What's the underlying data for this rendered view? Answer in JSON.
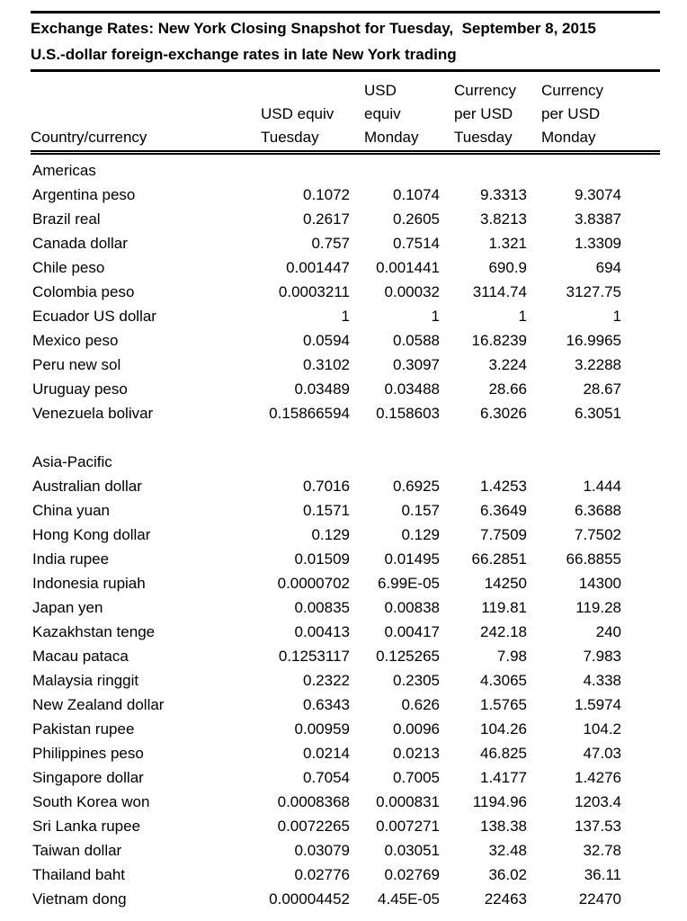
{
  "document": {
    "title": "Exchange Rates: New York Closing Snapshot for Tuesday,  September 8, 2015",
    "subtitle": "U.S.-dollar foreign-exchange rates in late New York trading"
  },
  "table": {
    "columns": [
      {
        "id": "country",
        "align": "left",
        "header_lines": [
          "Country/currency"
        ]
      },
      {
        "id": "usd-equiv-tuesday",
        "align": "right",
        "header_lines": [
          "USD equiv",
          "Tuesday"
        ]
      },
      {
        "id": "usd-equiv-monday",
        "align": "right",
        "header_lines": [
          "USD",
          "equiv",
          "Monday"
        ]
      },
      {
        "id": "per-usd-tuesday",
        "align": "right",
        "header_lines": [
          "Currency",
          "per USD",
          "Tuesday"
        ]
      },
      {
        "id": "per-usd-monday",
        "align": "right",
        "header_lines": [
          "Currency",
          "per USD",
          "Monday"
        ]
      }
    ],
    "sections": [
      {
        "name": "Americas",
        "rows": [
          {
            "country": "Argentina peso",
            "values": [
              "0.1072",
              "0.1074",
              "9.3313",
              "9.3074"
            ]
          },
          {
            "country": "Brazil real",
            "values": [
              "0.2617",
              "0.2605",
              "3.8213",
              "3.8387"
            ]
          },
          {
            "country": "Canada dollar",
            "values": [
              "0.757",
              "0.7514",
              "1.321",
              "1.3309"
            ]
          },
          {
            "country": "Chile peso",
            "values": [
              "0.001447",
              "0.001441",
              "690.9",
              "694"
            ]
          },
          {
            "country": "Colombia peso",
            "values": [
              "0.0003211",
              "0.00032",
              "3114.74",
              "3127.75"
            ]
          },
          {
            "country": "Ecuador US dollar",
            "values": [
              "1",
              "1",
              "1",
              "1"
            ]
          },
          {
            "country": "Mexico peso",
            "values": [
              "0.0594",
              "0.0588",
              "16.8239",
              "16.9965"
            ]
          },
          {
            "country": "Peru new sol",
            "values": [
              "0.3102",
              "0.3097",
              "3.224",
              "3.2288"
            ]
          },
          {
            "country": "Uruguay peso",
            "values": [
              "0.03489",
              "0.03488",
              "28.66",
              "28.67"
            ]
          },
          {
            "country": "Venezuela bolivar",
            "values": [
              "0.15866594",
              "0.158603",
              "6.3026",
              "6.3051"
            ]
          }
        ]
      },
      {
        "name": "Asia-Pacific",
        "rows": [
          {
            "country": "Australian dollar",
            "values": [
              "0.7016",
              "0.6925",
              "1.4253",
              "1.444"
            ]
          },
          {
            "country": "China yuan",
            "values": [
              "0.1571",
              "0.157",
              "6.3649",
              "6.3688"
            ]
          },
          {
            "country": "Hong Kong dollar",
            "values": [
              "0.129",
              "0.129",
              "7.7509",
              "7.7502"
            ]
          },
          {
            "country": "India rupee",
            "values": [
              "0.01509",
              "0.01495",
              "66.2851",
              "66.8855"
            ]
          },
          {
            "country": "Indonesia rupiah",
            "values": [
              "0.0000702",
              "6.99E-05",
              "14250",
              "14300"
            ]
          },
          {
            "country": "Japan yen",
            "values": [
              "0.00835",
              "0.00838",
              "119.81",
              "119.28"
            ]
          },
          {
            "country": "Kazakhstan tenge",
            "values": [
              "0.00413",
              "0.00417",
              "242.18",
              "240"
            ]
          },
          {
            "country": "Macau pataca",
            "values": [
              "0.1253117",
              "0.125265",
              "7.98",
              "7.983"
            ]
          },
          {
            "country": "Malaysia ringgit",
            "values": [
              "0.2322",
              "0.2305",
              "4.3065",
              "4.338"
            ]
          },
          {
            "country": "New Zealand dollar",
            "values": [
              "0.6343",
              "0.626",
              "1.5765",
              "1.5974"
            ]
          },
          {
            "country": "Pakistan rupee",
            "values": [
              "0.00959",
              "0.0096",
              "104.26",
              "104.2"
            ]
          },
          {
            "country": "Philippines peso",
            "values": [
              "0.0214",
              "0.0213",
              "46.825",
              "47.03"
            ]
          },
          {
            "country": "Singapore dollar",
            "values": [
              "0.7054",
              "0.7005",
              "1.4177",
              "1.4276"
            ]
          },
          {
            "country": "South Korea won",
            "values": [
              "0.0008368",
              "0.000831",
              "1194.96",
              "1203.4"
            ]
          },
          {
            "country": "Sri Lanka rupee",
            "values": [
              "0.0072265",
              "0.007271",
              "138.38",
              "137.53"
            ]
          },
          {
            "country": "Taiwan dollar",
            "values": [
              "0.03079",
              "0.03051",
              "32.48",
              "32.78"
            ]
          },
          {
            "country": "Thailand baht",
            "values": [
              "0.02776",
              "0.02769",
              "36.02",
              "36.11"
            ]
          },
          {
            "country": "Vietnam dong",
            "values": [
              "0.00004452",
              "4.45E-05",
              "22463",
              "22470"
            ]
          }
        ]
      }
    ]
  }
}
